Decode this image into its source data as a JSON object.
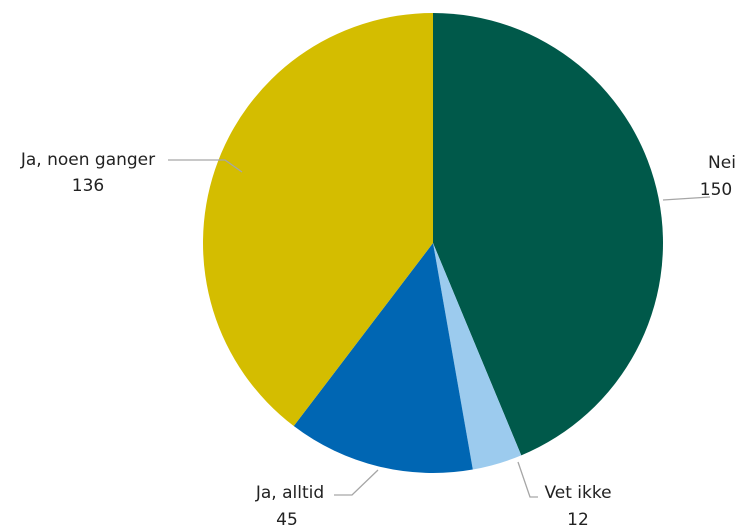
{
  "chart_data": {
    "type": "pie",
    "categories": [
      "Nei",
      "Vet ikke",
      "Ja, alltid",
      "Ja, noen ganger"
    ],
    "values": [
      150,
      12,
      45,
      136
    ],
    "colors": [
      "#00594a",
      "#9ccbee",
      "#0066b3",
      "#d4bd00"
    ]
  }
}
